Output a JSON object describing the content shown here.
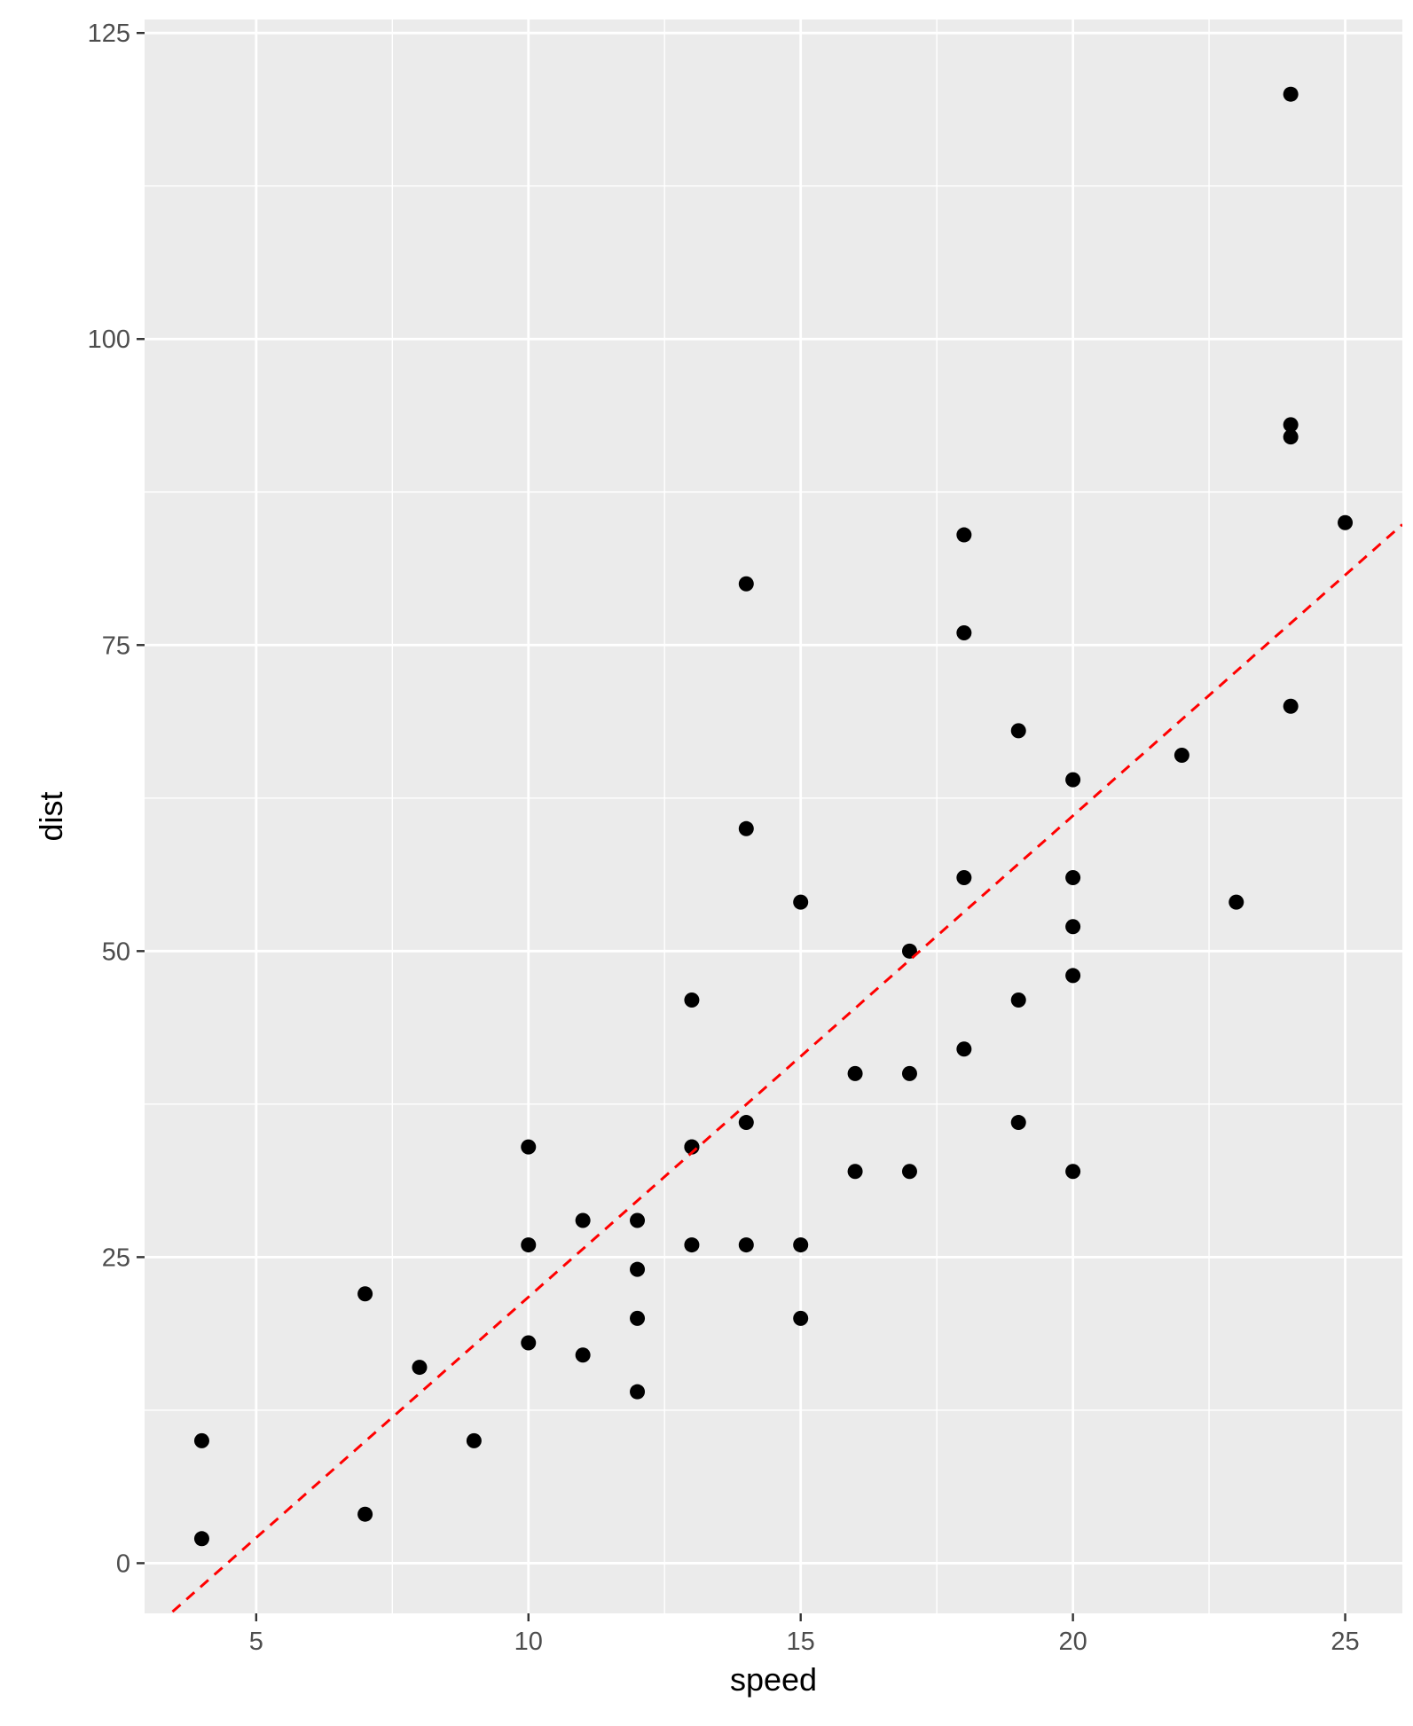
{
  "chart_data": {
    "type": "scatter",
    "title": "",
    "xlabel": "speed",
    "ylabel": "dist",
    "xlim": [
      2.95,
      26.05
    ],
    "ylim": [
      -4.1,
      126.1
    ],
    "x_ticks": [
      5,
      10,
      15,
      20,
      25
    ],
    "x_tick_labels": [
      "5",
      "10",
      "15",
      "20",
      "25"
    ],
    "y_ticks": [
      0,
      25,
      50,
      75,
      100,
      125
    ],
    "y_tick_labels": [
      "0",
      "25",
      "50",
      "75",
      "100",
      "125"
    ],
    "grid": true,
    "legend": "none",
    "series": [
      {
        "type": "points",
        "color": "#000000",
        "points": [
          [
            4,
            2
          ],
          [
            4,
            10
          ],
          [
            7,
            4
          ],
          [
            7,
            22
          ],
          [
            8,
            16
          ],
          [
            9,
            10
          ],
          [
            10,
            18
          ],
          [
            10,
            26
          ],
          [
            10,
            34
          ],
          [
            11,
            17
          ],
          [
            11,
            28
          ],
          [
            12,
            14
          ],
          [
            12,
            20
          ],
          [
            12,
            24
          ],
          [
            12,
            28
          ],
          [
            13,
            26
          ],
          [
            13,
            34
          ],
          [
            13,
            34
          ],
          [
            13,
            46
          ],
          [
            14,
            26
          ],
          [
            14,
            36
          ],
          [
            14,
            60
          ],
          [
            14,
            80
          ],
          [
            15,
            20
          ],
          [
            15,
            26
          ],
          [
            15,
            54
          ],
          [
            16,
            32
          ],
          [
            16,
            40
          ],
          [
            17,
            32
          ],
          [
            17,
            40
          ],
          [
            17,
            50
          ],
          [
            18,
            42
          ],
          [
            18,
            56
          ],
          [
            18,
            76
          ],
          [
            18,
            84
          ],
          [
            19,
            36
          ],
          [
            19,
            46
          ],
          [
            19,
            68
          ],
          [
            20,
            32
          ],
          [
            20,
            48
          ],
          [
            20,
            52
          ],
          [
            20,
            56
          ],
          [
            20,
            64
          ],
          [
            22,
            66
          ],
          [
            23,
            54
          ],
          [
            24,
            70
          ],
          [
            24,
            92
          ],
          [
            24,
            93
          ],
          [
            24,
            120
          ],
          [
            25,
            85
          ]
        ]
      },
      {
        "type": "line",
        "style": "dashed",
        "color": "#ff0000",
        "intercept": -17.58,
        "slope": 3.932
      }
    ],
    "colors": {
      "panel": "#ebebeb",
      "grid": "#ffffff",
      "tick": "#333333",
      "tick_label": "#4d4d4d"
    }
  }
}
